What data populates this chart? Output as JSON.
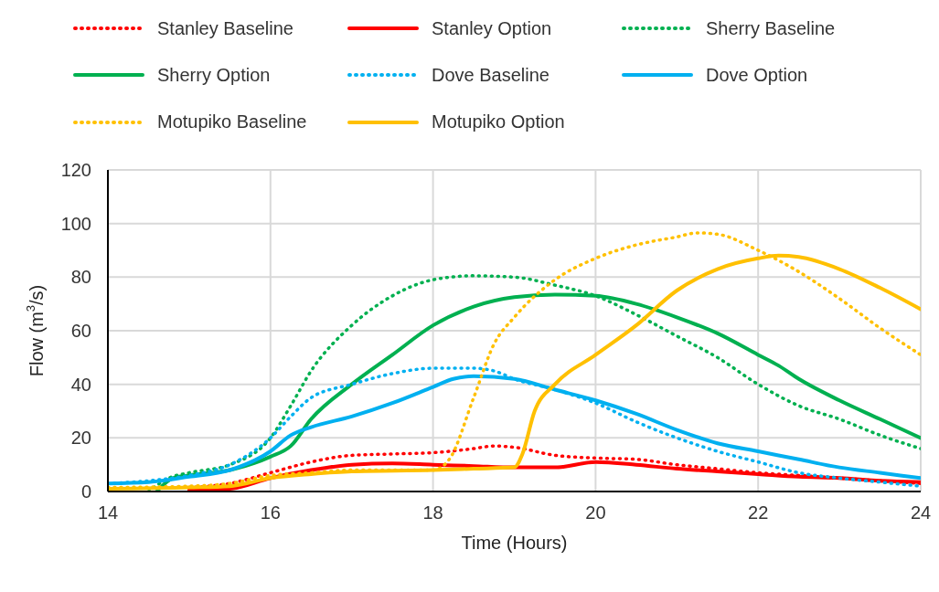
{
  "chart_data": {
    "type": "line",
    "xlabel": "Time (Hours)",
    "ylabel": "Flow (m$^{3}$/s)",
    "xlim": [
      14,
      24
    ],
    "xticks": [
      14,
      16,
      18,
      20,
      22,
      24
    ],
    "ylim": [
      0,
      120
    ],
    "yticks": [
      0,
      20,
      40,
      60,
      80,
      100,
      120
    ],
    "grid": true,
    "legend": "top",
    "marker": "none",
    "series": [
      {
        "name": "Stanley Baseline",
        "color": "#ff0000",
        "line_style": "dotted",
        "x": [
          15,
          15.5,
          16,
          16.5,
          17,
          17.5,
          18,
          18.5,
          18.75,
          19,
          19.5,
          20,
          20.5,
          21,
          21.5,
          22,
          22.5,
          23,
          23.5,
          24
        ],
        "values": [
          1.5,
          3,
          7,
          11,
          13.5,
          14,
          14.5,
          16,
          17,
          16.5,
          13.5,
          12.5,
          12,
          10,
          8.5,
          7,
          6,
          5,
          4,
          3
        ]
      },
      {
        "name": "Stanley Option",
        "color": "#ff0000",
        "line_style": "solid",
        "x": [
          15,
          15.5,
          16,
          16.5,
          17,
          17.5,
          18,
          18.5,
          19,
          19.5,
          20,
          20.5,
          21,
          21.5,
          22,
          22.5,
          23,
          23.5,
          24
        ],
        "values": [
          0.5,
          1,
          5,
          8,
          10,
          10.5,
          10,
          9.5,
          9,
          9,
          11,
          10,
          8.5,
          7.5,
          6.5,
          5.5,
          5,
          4,
          3.5
        ]
      },
      {
        "name": "Sherry Baseline",
        "color": "#00b050",
        "line_style": "dotted",
        "x": [
          14.5,
          14.75,
          15,
          15.5,
          16,
          16.25,
          16.5,
          17,
          17.5,
          18,
          18.5,
          19,
          19.5,
          20,
          20.5,
          21,
          21.5,
          22,
          22.5,
          23,
          23.5,
          24
        ],
        "values": [
          0,
          5,
          7,
          10,
          20,
          32,
          45,
          62,
          73,
          79,
          80.5,
          80,
          77,
          73,
          66,
          58,
          50,
          40,
          32,
          27,
          21,
          16
        ]
      },
      {
        "name": "Sherry Option",
        "color": "#00b050",
        "line_style": "solid",
        "x": [
          14.6,
          14.8,
          15,
          15.5,
          16,
          16.25,
          16.5,
          17,
          17.5,
          18,
          18.5,
          19,
          19.5,
          20,
          20.5,
          21,
          21.5,
          22,
          22.25,
          22.5,
          23,
          23.5,
          24
        ],
        "values": [
          0,
          5,
          6,
          8,
          13,
          17,
          27,
          40,
          51,
          62,
          69,
          72.5,
          73.5,
          73,
          70,
          65,
          59,
          51,
          47,
          42,
          34,
          27,
          20
        ]
      },
      {
        "name": "Dove Baseline",
        "color": "#00b0f0",
        "line_style": "dotted",
        "x": [
          14,
          14.5,
          15,
          15.5,
          16,
          16.25,
          16.5,
          17,
          17.5,
          18,
          18.5,
          18.75,
          19,
          19.5,
          20,
          20.5,
          21,
          21.5,
          22,
          22.5,
          23,
          23.5,
          24
        ],
        "values": [
          3,
          4,
          6,
          10,
          20,
          28,
          35,
          40,
          44,
          46,
          46,
          45,
          42,
          38,
          33,
          26,
          20,
          15,
          11,
          7,
          5,
          3.5,
          2
        ]
      },
      {
        "name": "Dove Option",
        "color": "#00b0f0",
        "line_style": "solid",
        "x": [
          14,
          14.5,
          15,
          15.5,
          16,
          16.25,
          16.5,
          17,
          17.5,
          18,
          18.25,
          18.5,
          19,
          19.5,
          20,
          20.5,
          21,
          21.5,
          22,
          22.5,
          23,
          23.5,
          24
        ],
        "values": [
          3,
          3.5,
          5.5,
          8,
          15,
          21,
          24,
          28,
          33,
          39,
          42,
          43,
          42,
          38,
          34,
          29,
          23,
          18,
          15,
          12,
          9,
          7,
          5
        ]
      },
      {
        "name": "Motupiko Baseline",
        "color": "#ffc000",
        "line_style": "dotted",
        "x": [
          14,
          15,
          15.5,
          16,
          16.5,
          17,
          18,
          18.2,
          18.5,
          18.75,
          19,
          19.5,
          20,
          20.5,
          21,
          21.25,
          21.5,
          22,
          22.5,
          23,
          23.5,
          24
        ],
        "values": [
          1.5,
          2,
          3,
          6,
          7,
          8,
          8,
          12,
          35,
          55,
          65,
          79,
          87,
          92,
          95,
          96.5,
          96,
          90,
          82,
          72,
          61,
          51
        ]
      },
      {
        "name": "Motupiko Option",
        "color": "#ffc000",
        "line_style": "solid",
        "x": [
          14,
          15,
          15.5,
          16,
          16.5,
          17,
          18,
          18.5,
          19,
          19.1,
          19.25,
          19.5,
          20,
          20.5,
          21,
          21.5,
          22,
          22.25,
          22.5,
          23,
          23.5,
          24
        ],
        "values": [
          1,
          1.5,
          2,
          5,
          6.5,
          7.5,
          8,
          8.5,
          9,
          14,
          30,
          40,
          51,
          62,
          75,
          83,
          87,
          88,
          87.5,
          83,
          76,
          68
        ]
      }
    ]
  }
}
